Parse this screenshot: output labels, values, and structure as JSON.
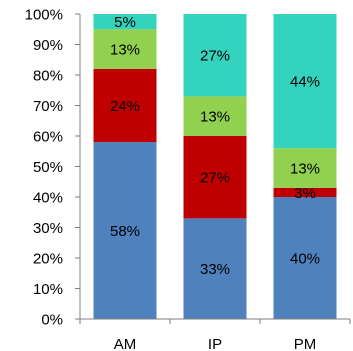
{
  "chart_data": {
    "type": "bar",
    "stacked": true,
    "percent_stacked": true,
    "categories": [
      "AM",
      "IP",
      "PM"
    ],
    "series": [
      {
        "values": [
          58,
          33,
          40
        ],
        "labels": [
          "58%",
          "33%",
          "40%"
        ],
        "color": "#4f81bd"
      },
      {
        "values": [
          24,
          27,
          3
        ],
        "labels": [
          "24%",
          "27%",
          "3%"
        ],
        "color": "#c00000"
      },
      {
        "values": [
          13,
          13,
          13
        ],
        "labels": [
          "13%",
          "13%",
          "13%"
        ],
        "color": "#92d050"
      },
      {
        "values": [
          5,
          27,
          44
        ],
        "labels": [
          "5%",
          "27%",
          "44%"
        ],
        "color": "#33d3be"
      }
    ],
    "y_ticks": [
      "0%",
      "10%",
      "20%",
      "30%",
      "40%",
      "50%",
      "60%",
      "70%",
      "80%",
      "90%",
      "100%"
    ],
    "ylim": [
      0,
      100
    ],
    "legend": "none",
    "grid": false,
    "title": "",
    "xlabel": "",
    "ylabel": ""
  }
}
